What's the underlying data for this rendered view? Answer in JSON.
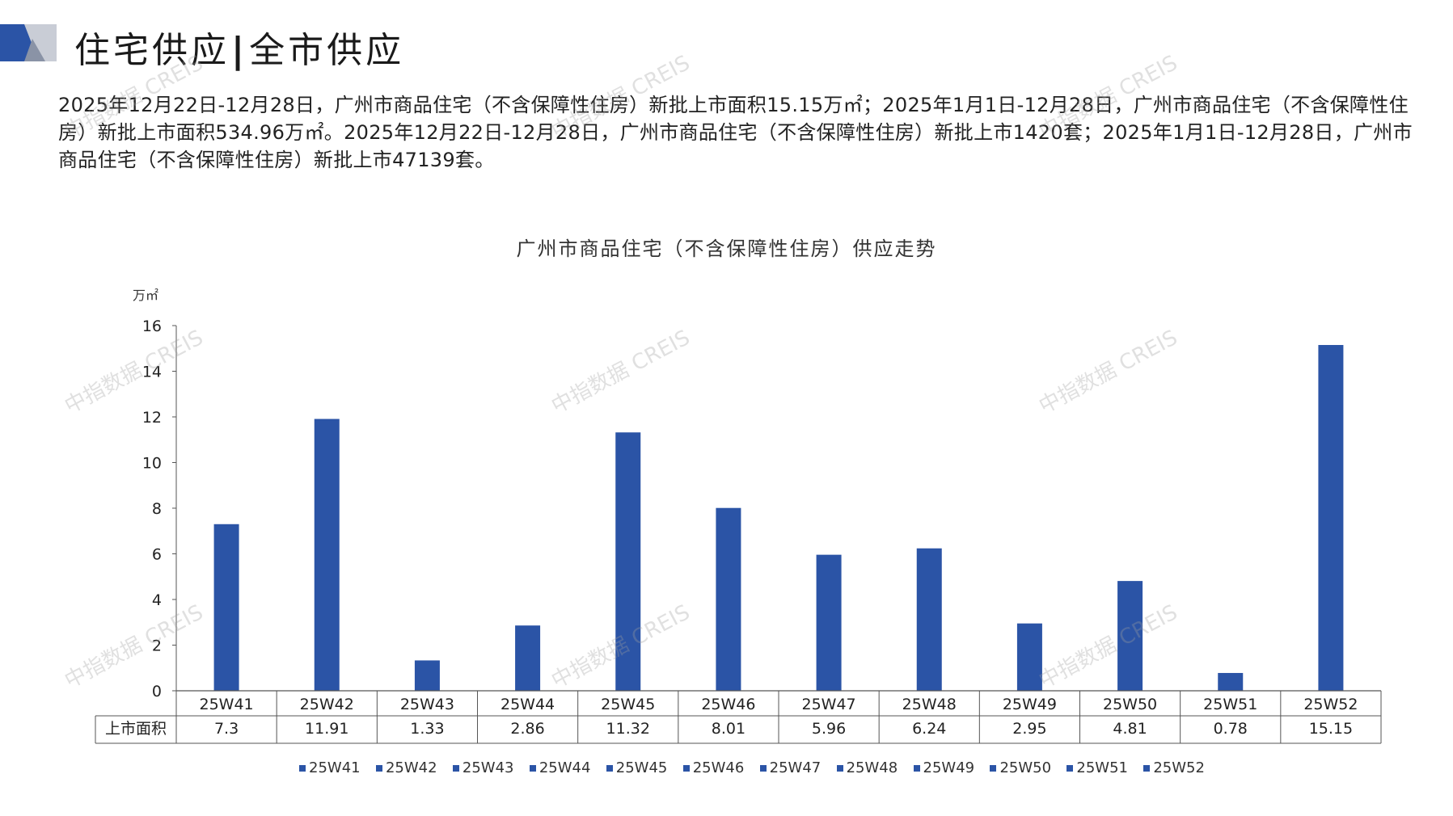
{
  "header": {
    "title_left": "住宅供应",
    "title_sep": "|",
    "title_right": "全市供应"
  },
  "summary": "2025年12月22日-12月28日，广州市商品住宅（不含保障性住房）新批上市面积15.15万㎡；2025年1月1日-12月28日，广州市商品住宅（不含保障性住房）新批上市面积534.96万㎡。2025年12月22日-12月28日，广州市商品住宅（不含保障性住房）新批上市1420套；2025年1月1日-12月28日，广州市商品住宅（不含保障性住房）新批上市47139套。",
  "watermark_text": "中指数据 CREIS",
  "colors": {
    "bar": "#2b54a6",
    "logo_dark": "#2b54a6",
    "logo_light": "#c9cdd6"
  },
  "chart_data": {
    "type": "bar",
    "title": "广州市商品住宅（不含保障性住房）供应走势",
    "ylabel": "万㎡",
    "ylim": [
      0,
      16
    ],
    "yticks": [
      0,
      2,
      4,
      6,
      8,
      10,
      12,
      14,
      16
    ],
    "categories": [
      "25W41",
      "25W42",
      "25W43",
      "25W44",
      "25W45",
      "25W46",
      "25W47",
      "25W48",
      "25W49",
      "25W50",
      "25W51",
      "25W52"
    ],
    "series": [
      {
        "name": "上市面积",
        "values": [
          7.3,
          11.91,
          1.33,
          2.86,
          11.32,
          8.01,
          5.96,
          6.24,
          2.95,
          4.81,
          0.78,
          15.15
        ]
      }
    ],
    "value_labels": [
      "7.3",
      "11.91",
      "1.33",
      "2.86",
      "11.32",
      "8.01",
      "5.96",
      "6.24",
      "2.95",
      "4.81",
      "0.78",
      "15.15"
    ],
    "data_table": true,
    "legend": [
      "25W41",
      "25W42",
      "25W43",
      "25W44",
      "25W45",
      "25W46",
      "25W47",
      "25W48",
      "25W49",
      "25W50",
      "25W51",
      "25W52"
    ],
    "legend_position": "bottom"
  }
}
